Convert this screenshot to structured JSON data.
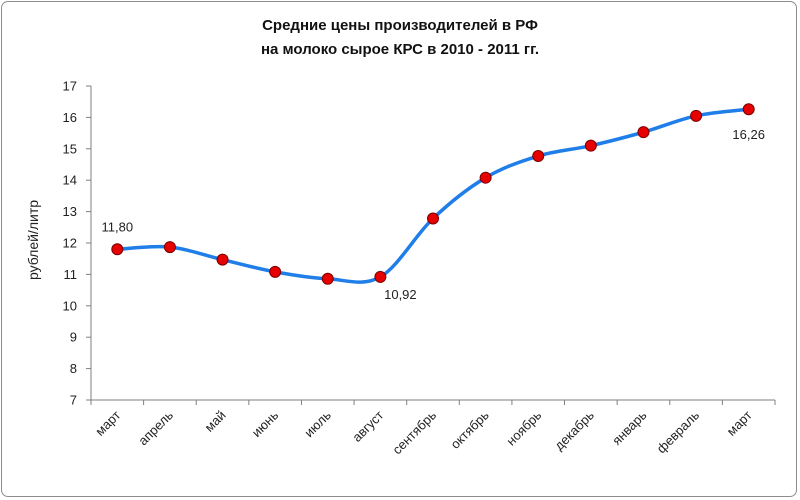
{
  "chart_data": {
    "type": "line",
    "title_lines": [
      "Средние цены производителей в РФ",
      "на молоко сырое КРС в 2010 - 2011 гг."
    ],
    "xlabel": "",
    "ylabel": "рублей/литр",
    "categories": [
      "март",
      "апрель",
      "май",
      "июнь",
      "июль",
      "август",
      "сентябрь",
      "октябрь",
      "ноябрь",
      "декабрь",
      "январь",
      "февраль",
      "март"
    ],
    "series": [
      {
        "values": [
          11.8,
          11.87,
          11.47,
          11.08,
          10.86,
          10.92,
          12.78,
          14.08,
          14.77,
          15.1,
          15.53,
          16.05,
          16.26
        ],
        "color": "#1f7ee8",
        "marker_color": "#e60000"
      }
    ],
    "ylim": [
      7,
      17
    ],
    "yticks": [
      "7",
      "8",
      "9",
      "10",
      "11",
      "12",
      "13",
      "14",
      "15",
      "16",
      "17"
    ],
    "grid": false,
    "legend": "none",
    "data_labels": [
      {
        "index": 0,
        "text": "11,80"
      },
      {
        "index": 5,
        "text": "10,92"
      },
      {
        "index": 12,
        "text": "16,26"
      }
    ]
  }
}
